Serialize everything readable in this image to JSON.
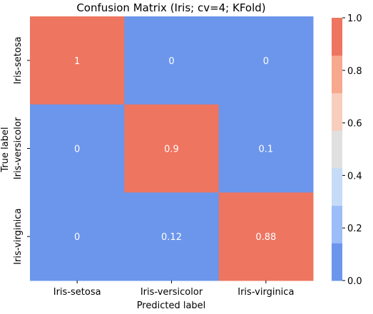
{
  "chart_data": {
    "type": "heatmap",
    "title": "Confusion Matrix (Iris; cv=4; KFold)",
    "xlabel": "Predicted label",
    "ylabel": "True label",
    "x_categories": [
      "Iris-setosa",
      "Iris-versicolor",
      "Iris-virginica"
    ],
    "y_categories": [
      "Iris-setosa",
      "Iris-versicolor",
      "Iris-virginica"
    ],
    "values": [
      [
        1,
        0,
        0
      ],
      [
        0,
        0.9,
        0.1
      ],
      [
        0,
        0.12,
        0.88
      ]
    ],
    "value_labels": [
      [
        "1",
        "0",
        "0"
      ],
      [
        "0",
        "0.9",
        "0.1"
      ],
      [
        "0",
        "0.12",
        "0.88"
      ]
    ],
    "colorbar": {
      "range": [
        0.0,
        1.0
      ],
      "ticks": [
        0.0,
        0.2,
        0.4,
        0.6,
        0.8,
        1.0
      ],
      "tick_labels": [
        "0.0",
        "0.2",
        "0.4",
        "0.6",
        "0.8",
        "1.0"
      ],
      "colors": [
        "#6b96ec",
        "#9cbdf7",
        "#c5dbf7",
        "#e0e0e0",
        "#f8cdbd",
        "#f6a98f",
        "#ee7560"
      ]
    }
  }
}
